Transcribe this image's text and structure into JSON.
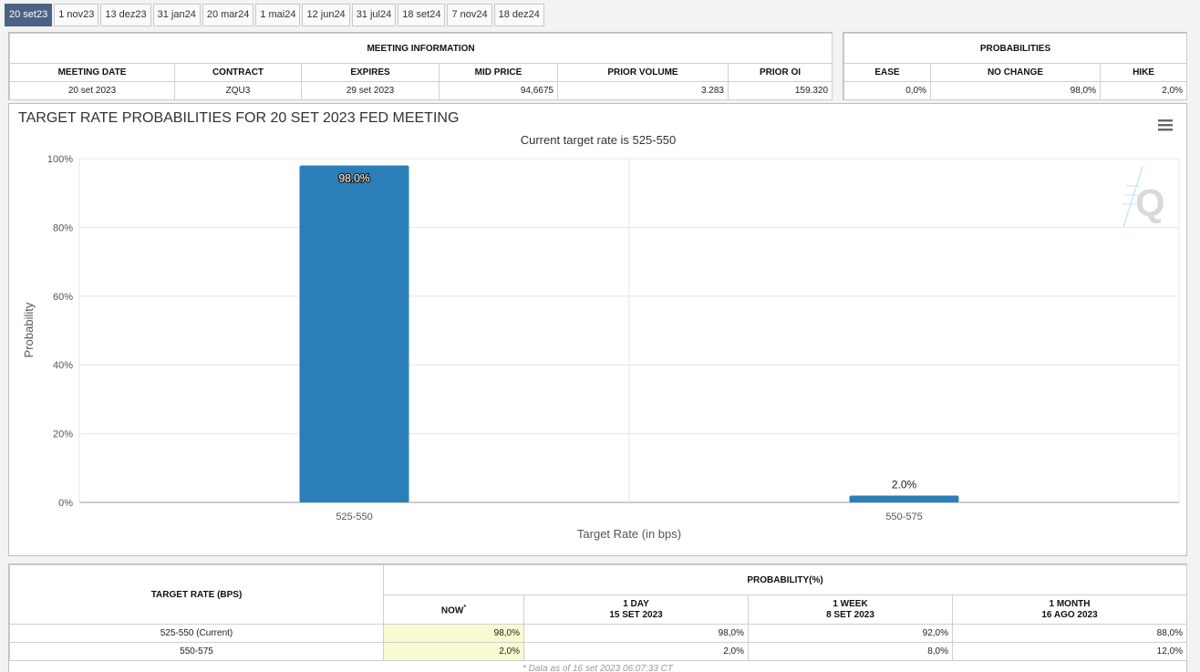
{
  "tabs": [
    "20 set23",
    "1 nov23",
    "13 dez23",
    "31 jan24",
    "20 mar24",
    "1 mai24",
    "12 jun24",
    "31 jul24",
    "18 set24",
    "7 nov24",
    "18 dez24"
  ],
  "active_tab": 0,
  "meeting_info": {
    "title": "MEETING INFORMATION",
    "headers": [
      "MEETING DATE",
      "CONTRACT",
      "EXPIRES",
      "MID PRICE",
      "PRIOR VOLUME",
      "PRIOR OI"
    ],
    "row": [
      "20 set 2023",
      "ZQU3",
      "29 set 2023",
      "94,6675",
      "3.283",
      "159.320"
    ]
  },
  "probabilities": {
    "title": "PROBABILITIES",
    "headers": [
      "EASE",
      "NO CHANGE",
      "HIKE"
    ],
    "row": [
      "0,0%",
      "98,0%",
      "2,0%"
    ]
  },
  "chart_data": {
    "type": "bar",
    "title": "TARGET RATE PROBABILITIES FOR 20 SET 2023 FED MEETING",
    "subtitle": "Current target rate is 525-550",
    "categories": [
      "525-550",
      "550-575"
    ],
    "values": [
      98.0,
      2.0
    ],
    "value_labels": [
      "98.0%",
      "2.0%"
    ],
    "xlabel": "Target Rate (in bps)",
    "ylabel": "Probability",
    "ylim": [
      0,
      100
    ],
    "yticks": [
      "0%",
      "20%",
      "40%",
      "60%",
      "80%",
      "100%"
    ],
    "grid": true,
    "color": "#2b7fb8"
  },
  "rates_table": {
    "col_header": "TARGET RATE (BPS)",
    "group_header": "PROBABILITY(%)",
    "now_label": "NOW",
    "now_mark": "*",
    "sub_headers": [
      {
        "line1": "1 DAY",
        "line2": "15 SET 2023"
      },
      {
        "line1": "1 WEEK",
        "line2": "8 SET 2023"
      },
      {
        "line1": "1 MONTH",
        "line2": "16 AGO 2023"
      }
    ],
    "rows": [
      {
        "rate": "525-550 (Current)",
        "now": "98,0%",
        "day": "98,0%",
        "week": "92,0%",
        "month": "88,0%"
      },
      {
        "rate": "550-575",
        "now": "2,0%",
        "day": "2,0%",
        "week": "8,0%",
        "month": "12,0%"
      }
    ],
    "footnote": "* Data as of 16 set 2023 06:07:33 CT"
  },
  "icons": {
    "menu": "hamburger-menu-icon",
    "logo": "q-logo-icon"
  }
}
